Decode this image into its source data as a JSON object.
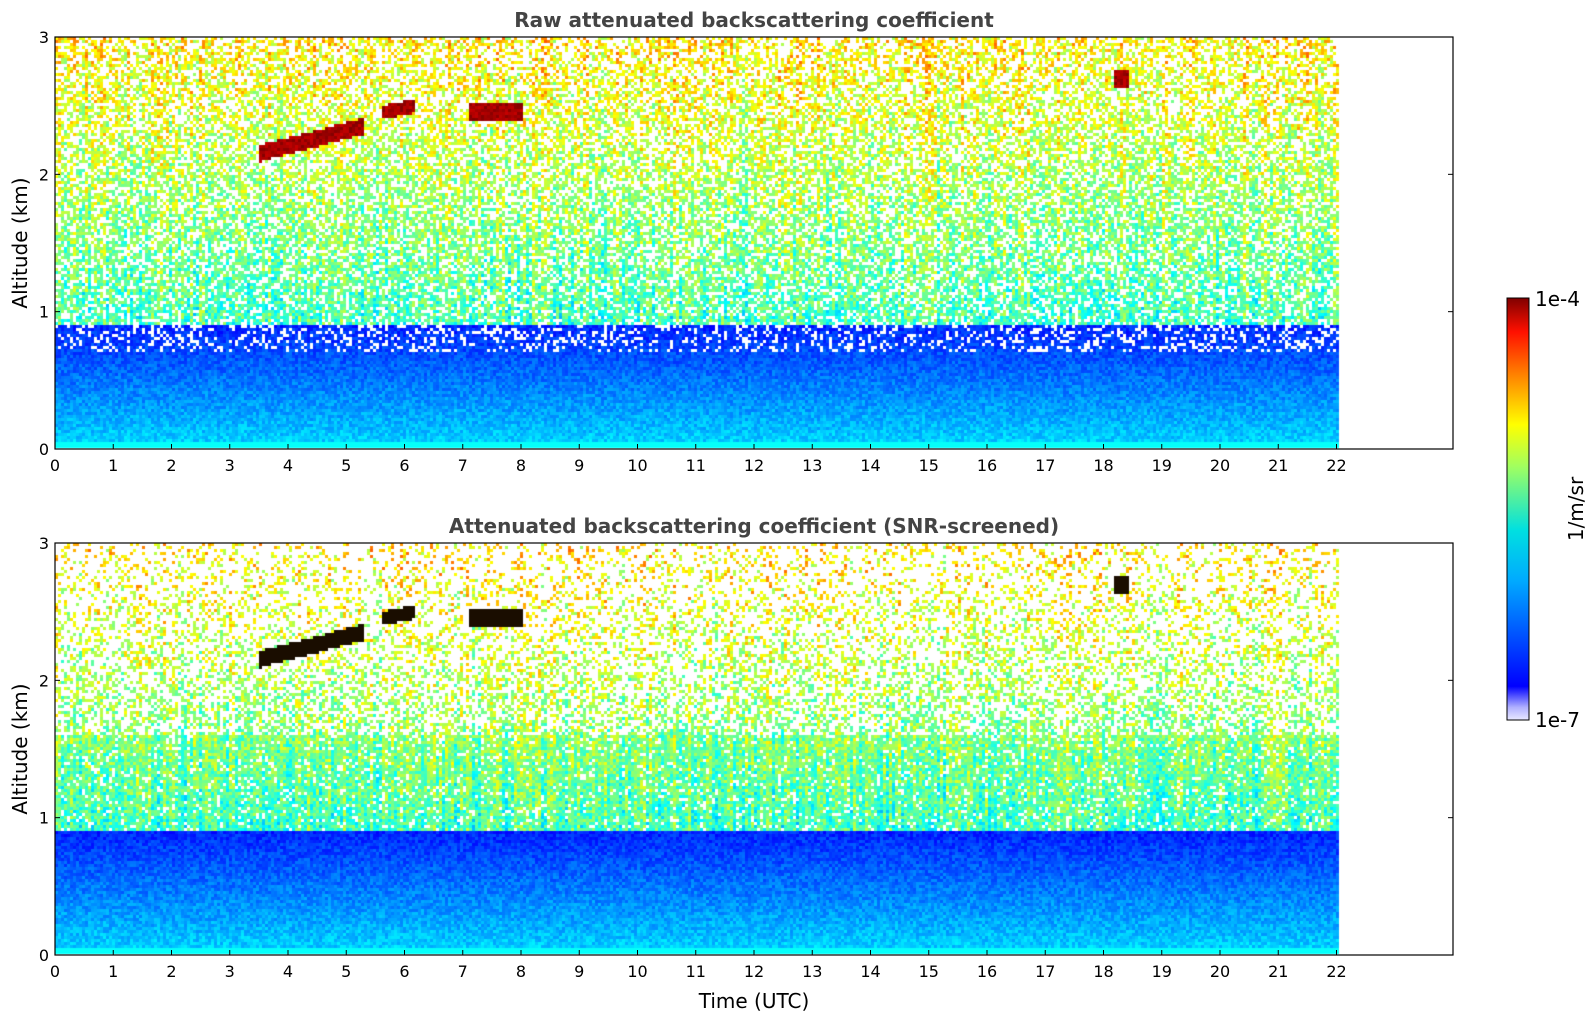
{
  "chart_data": [
    {
      "type": "heatmap",
      "title": "Raw attenuated backscattering coefficient",
      "xlabel": "",
      "ylabel": "Altitude (km)",
      "xlim": [
        0,
        24
      ],
      "ylim": [
        0,
        3
      ],
      "x_ticks": [
        "0",
        "1",
        "2",
        "3",
        "4",
        "5",
        "6",
        "7",
        "8",
        "9",
        "10",
        "11",
        "12",
        "13",
        "14",
        "15",
        "16",
        "17",
        "18",
        "19",
        "20",
        "21",
        "22"
      ],
      "y_ticks": [
        "0",
        "1",
        "2",
        "3"
      ],
      "data_extent_x": [
        0,
        22.05
      ],
      "screened": false,
      "cloud_layers": [
        {
          "x0": 3.5,
          "x1": 5.3,
          "y_start": 2.15,
          "y_end": 2.35,
          "thickness": 0.12
        },
        {
          "x0": 5.6,
          "x1": 6.2,
          "y_start": 2.45,
          "y_end": 2.5,
          "thickness": 0.1
        },
        {
          "x0": 7.1,
          "x1": 8.05,
          "y_start": 2.45,
          "y_end": 2.45,
          "thickness": 0.14
        },
        {
          "x0": 18.2,
          "x1": 18.45,
          "y_start": 2.7,
          "y_end": 2.7,
          "thickness": 0.14
        }
      ]
    },
    {
      "type": "heatmap",
      "title": "Attenuated backscattering coefficient (SNR-screened)",
      "xlabel": "Time (UTC)",
      "ylabel": "Altitude (km)",
      "xlim": [
        0,
        24
      ],
      "ylim": [
        0,
        3
      ],
      "x_ticks": [
        "0",
        "1",
        "2",
        "3",
        "4",
        "5",
        "6",
        "7",
        "8",
        "9",
        "10",
        "11",
        "12",
        "13",
        "14",
        "15",
        "16",
        "17",
        "18",
        "19",
        "20",
        "21",
        "22"
      ],
      "y_ticks": [
        "0",
        "1",
        "2",
        "3"
      ],
      "data_extent_x": [
        0,
        22.05
      ],
      "screened": true,
      "cloud_layers": [
        {
          "x0": 3.5,
          "x1": 5.3,
          "y_start": 2.15,
          "y_end": 2.35,
          "thickness": 0.12
        },
        {
          "x0": 5.6,
          "x1": 6.2,
          "y_start": 2.45,
          "y_end": 2.5,
          "thickness": 0.1
        },
        {
          "x0": 7.1,
          "x1": 8.05,
          "y_start": 2.45,
          "y_end": 2.45,
          "thickness": 0.14
        },
        {
          "x0": 18.2,
          "x1": 18.45,
          "y_start": 2.7,
          "y_end": 2.7,
          "thickness": 0.14
        }
      ]
    }
  ],
  "colorbar": {
    "label": "1/m/sr",
    "min_label": "1e-7",
    "max_label": "1e-4",
    "colormap": "jet",
    "scale": "log"
  },
  "colors": {
    "low": "#0000ff",
    "mid": "#40e0d0",
    "high": "#ffff00",
    "max": "#8b0000",
    "cloud_screened": "#1a0d00"
  }
}
